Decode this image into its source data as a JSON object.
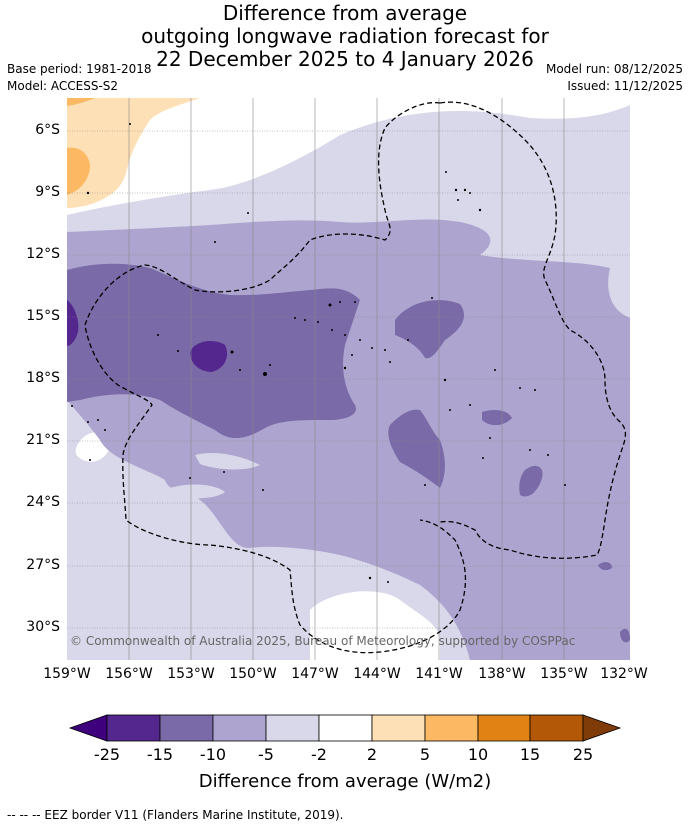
{
  "header": {
    "title_line1": "Difference from average",
    "title_line2": "outgoing longwave radiation forecast for",
    "title_line3": "22 December 2025 to 4 January 2026",
    "base_period": "Base period: 1981-2018",
    "model": "Model: ACCESS-S2",
    "model_run": "Model run: 08/12/2025",
    "issued": "Issued: 11/12/2025"
  },
  "map": {
    "lat_labels": [
      "6°S",
      "9°S",
      "12°S",
      "15°S",
      "18°S",
      "21°S",
      "24°S",
      "27°S",
      "30°S"
    ],
    "lon_labels": [
      "159°W",
      "156°W",
      "153°W",
      "150°W",
      "147°W",
      "144°W",
      "141°W",
      "138°W",
      "135°W",
      "132°W"
    ],
    "credit": "© Commonwealth of Australia 2025, Bureau of Meteorology, supported by COSPPac",
    "colors": {
      "lt_neg25": "#3f007d",
      "neg25_neg15": "#54278f",
      "neg15_neg10": "#7a6aa7",
      "neg10_neg5": "#ada5cf",
      "neg5_neg2": "#d9d8ea",
      "neg2_2": "#ffffff",
      "pos2_5": "#fee0b6",
      "pos5_10": "#fdb863",
      "pos10_15": "#e08214",
      "pos15_25": "#b35806",
      "gt_pos25": "#7f3b08"
    }
  },
  "colorbar": {
    "ticks": [
      "-25",
      "-15",
      "-10",
      "-5",
      "-2",
      "2",
      "5",
      "10",
      "15",
      "25"
    ],
    "title": "Difference from average (W/m2)"
  },
  "legend": {
    "eez_text": "--  --  -- EEZ border V11 (Flanders Marine Institute, 2019)."
  }
}
